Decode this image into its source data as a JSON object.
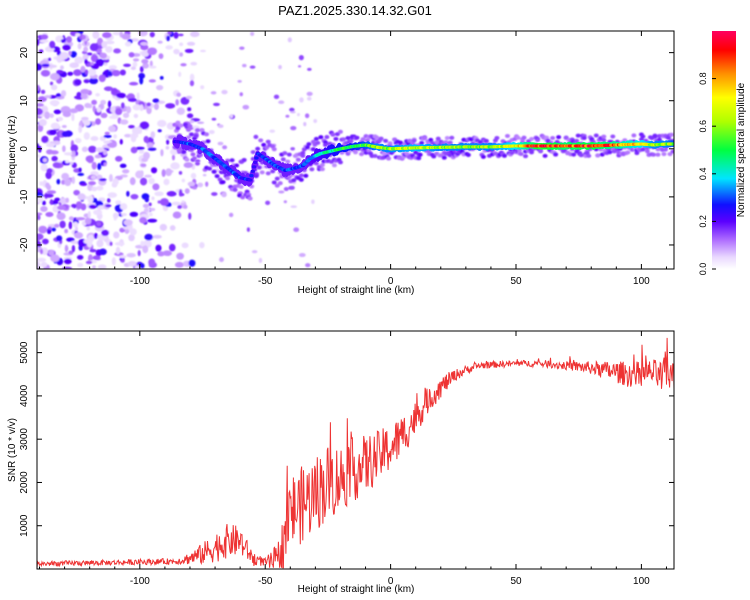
{
  "figure": {
    "title": "PAZ1.2025.330.14.32.G01"
  },
  "chart_data": [
    {
      "type": "heatmap",
      "name": "spectrogram",
      "xlabel": "Height of straight line (km)",
      "ylabel": "Frequency (Hz)",
      "xlim": [
        -141,
        113
      ],
      "ylim": [
        -25,
        24.5
      ],
      "xticks": [
        -100,
        -50,
        0,
        50,
        100
      ],
      "yticks": [
        -20,
        -10,
        0,
        10,
        20
      ],
      "grid": false,
      "colorbar": {
        "label": "Normalized spectral amplitude",
        "range": [
          0,
          1
        ],
        "ticks": [
          0,
          0.2,
          0.4,
          0.6,
          0.8
        ],
        "tick_labels": [
          "0.0",
          "0.2",
          "0.4",
          "0.6",
          "0.8"
        ],
        "colormap": [
          "#ffffff",
          "#e9d8ff",
          "#c28cff",
          "#7a2bff",
          "#2a00ff",
          "#00ffff",
          "#00ff00",
          "#ffff00",
          "#ff8000",
          "#ff0000"
        ]
      },
      "signal_trace": {
        "description": "dominant frequency ridge (Hz) vs height (km)",
        "x": [
          -85,
          -80,
          -75,
          -70,
          -65,
          -60,
          -56,
          -53,
          -50,
          -46,
          -42,
          -38,
          -35,
          -32,
          -28,
          -24,
          -20,
          -15,
          -10,
          -5,
          0,
          10,
          20,
          30,
          40,
          50,
          60,
          70,
          80,
          90,
          100,
          105,
          110,
          113
        ],
        "frequency": [
          1.5,
          1,
          0,
          -2,
          -4,
          -6,
          -6.5,
          -1,
          -2,
          -3.5,
          -4.5,
          -4,
          -3.5,
          -2,
          -1,
          -0.5,
          0,
          0.5,
          0.8,
          0.3,
          0,
          0.2,
          0.3,
          0.4,
          0.4,
          0.6,
          0.6,
          0.6,
          0.6,
          0.8,
          1,
          0.8,
          1,
          1
        ],
        "amplitude": [
          0.25,
          0.3,
          0.3,
          0.3,
          0.3,
          0.3,
          0.25,
          0.25,
          0.3,
          0.3,
          0.3,
          0.3,
          0.3,
          0.35,
          0.4,
          0.45,
          0.5,
          0.5,
          0.55,
          0.6,
          0.6,
          0.65,
          0.6,
          0.6,
          0.6,
          0.7,
          0.95,
          0.85,
          0.9,
          0.8,
          0.7,
          0.6,
          0.6,
          0.55
        ]
      },
      "noise_region_x": [
        -141,
        -85
      ]
    },
    {
      "type": "line",
      "name": "snr",
      "xlabel": "Height of straight line (km)",
      "ylabel": "SNR (10 * v/v)",
      "xlim": [
        -141,
        113
      ],
      "ylim": [
        0,
        5500
      ],
      "xticks": [
        -100,
        -50,
        0,
        50,
        100
      ],
      "yticks": [
        1000,
        2000,
        3000,
        4000,
        5000
      ],
      "grid": false,
      "series": [
        {
          "name": "SNR",
          "color": "#ee3333",
          "x": [
            -141,
            -110,
            -85,
            -80,
            -75,
            -70,
            -65,
            -60,
            -55,
            -50,
            -45,
            -42,
            -40,
            -35,
            -30,
            -25,
            -20,
            -15,
            -10,
            -5,
            0,
            5,
            10,
            15,
            20,
            25,
            30,
            35,
            40,
            50,
            60,
            70,
            80,
            85,
            90,
            95,
            100,
            105,
            108,
            110,
            113
          ],
          "y": [
            120,
            150,
            180,
            250,
            350,
            500,
            650,
            650,
            250,
            150,
            200,
            800,
            1300,
            1500,
            1750,
            2000,
            2100,
            2300,
            2400,
            2600,
            2800,
            3100,
            3500,
            3900,
            4200,
            4450,
            4600,
            4700,
            4720,
            4750,
            4750,
            4700,
            4650,
            4600,
            4550,
            4500,
            4500,
            4550,
            4400,
            4600,
            4400
          ],
          "noise_amplitude": [
            60,
            60,
            70,
            150,
            250,
            350,
            400,
            350,
            150,
            100,
            400,
            700,
            900,
            900,
            900,
            900,
            800,
            750,
            700,
            600,
            550,
            500,
            400,
            300,
            250,
            150,
            100,
            80,
            80,
            70,
            80,
            100,
            150,
            200,
            250,
            300,
            300,
            300,
            400,
            500,
            400
          ]
        }
      ]
    }
  ]
}
